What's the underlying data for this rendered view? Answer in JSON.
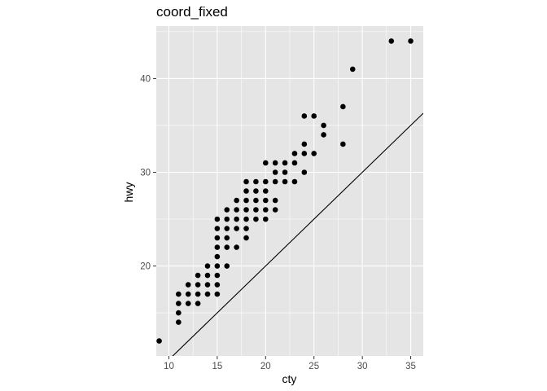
{
  "chart_data": {
    "type": "scatter",
    "title": "coord_fixed",
    "xlabel": "cty",
    "ylabel": "hwy",
    "xlim": [
      8.7,
      36.3
    ],
    "ylim": [
      10.4,
      45.6
    ],
    "x_ticks": [
      10,
      15,
      20,
      25,
      30,
      35
    ],
    "y_ticks": [
      20,
      30,
      40
    ],
    "grid": true,
    "aspect_ratio": 1,
    "background": "#e5e5e5",
    "grid_color": "#ffffff",
    "point_color": "#000000",
    "reference_line": {
      "slope": 1,
      "intercept": 0
    },
    "points": [
      [
        9,
        12
      ],
      [
        11,
        14
      ],
      [
        11,
        15
      ],
      [
        11,
        16
      ],
      [
        11,
        17
      ],
      [
        12,
        16
      ],
      [
        12,
        17
      ],
      [
        12,
        18
      ],
      [
        13,
        16
      ],
      [
        13,
        17
      ],
      [
        13,
        18
      ],
      [
        13,
        19
      ],
      [
        14,
        17
      ],
      [
        14,
        18
      ],
      [
        14,
        19
      ],
      [
        14,
        20
      ],
      [
        15,
        17
      ],
      [
        15,
        18
      ],
      [
        15,
        19
      ],
      [
        15,
        20
      ],
      [
        15,
        21
      ],
      [
        15,
        22
      ],
      [
        15,
        23
      ],
      [
        15,
        24
      ],
      [
        15,
        25
      ],
      [
        16,
        20
      ],
      [
        16,
        22
      ],
      [
        16,
        23
      ],
      [
        16,
        24
      ],
      [
        16,
        25
      ],
      [
        16,
        26
      ],
      [
        17,
        22
      ],
      [
        17,
        24
      ],
      [
        17,
        25
      ],
      [
        17,
        26
      ],
      [
        17,
        27
      ],
      [
        18,
        23
      ],
      [
        18,
        24
      ],
      [
        18,
        25
      ],
      [
        18,
        26
      ],
      [
        18,
        27
      ],
      [
        18,
        28
      ],
      [
        18,
        29
      ],
      [
        19,
        25
      ],
      [
        19,
        26
      ],
      [
        19,
        27
      ],
      [
        19,
        28
      ],
      [
        19,
        29
      ],
      [
        20,
        25
      ],
      [
        20,
        26
      ],
      [
        20,
        27
      ],
      [
        20,
        28
      ],
      [
        20,
        29
      ],
      [
        20,
        31
      ],
      [
        21,
        26
      ],
      [
        21,
        27
      ],
      [
        21,
        29
      ],
      [
        21,
        30
      ],
      [
        21,
        31
      ],
      [
        22,
        29
      ],
      [
        22,
        30
      ],
      [
        22,
        31
      ],
      [
        23,
        29
      ],
      [
        23,
        31
      ],
      [
        23,
        32
      ],
      [
        24,
        30
      ],
      [
        24,
        32
      ],
      [
        24,
        33
      ],
      [
        24,
        36
      ],
      [
        25,
        32
      ],
      [
        25,
        36
      ],
      [
        26,
        34
      ],
      [
        26,
        35
      ],
      [
        28,
        33
      ],
      [
        28,
        37
      ],
      [
        29,
        41
      ],
      [
        33,
        44
      ],
      [
        35,
        44
      ]
    ]
  }
}
